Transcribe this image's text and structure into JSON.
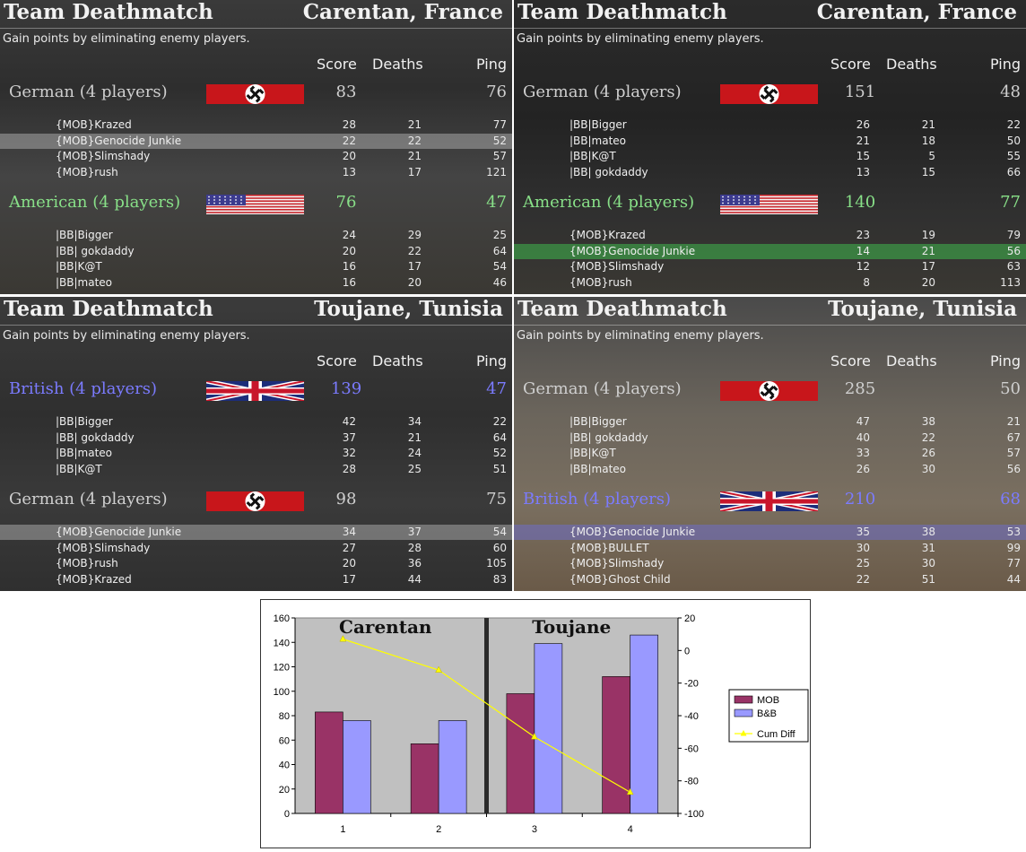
{
  "panels": [
    {
      "mode": "Team Deathmatch",
      "map": "Carentan, France",
      "subtitle": "Gain points by eliminating enemy players.",
      "columns": {
        "score": "Score",
        "deaths": "Deaths",
        "ping": "Ping"
      },
      "teams": [
        {
          "name": "German (4 players)",
          "flag": "german-flag",
          "score": "83",
          "ping": "76",
          "players": [
            {
              "name": "{MOB}Krazed",
              "score": "28",
              "deaths": "21",
              "ping": "77",
              "highlight": ""
            },
            {
              "name": "{MOB}Genocide Junkie",
              "score": "22",
              "deaths": "22",
              "ping": "52",
              "highlight": "gray"
            },
            {
              "name": "{MOB}Slimshady",
              "score": "20",
              "deaths": "21",
              "ping": "57",
              "highlight": ""
            },
            {
              "name": "{MOB}rush",
              "score": "13",
              "deaths": "17",
              "ping": "121",
              "highlight": ""
            }
          ]
        },
        {
          "name": "American (4 players)",
          "flag": "american-flag",
          "score": "76",
          "ping": "47",
          "players": [
            {
              "name": "|BB|Bigger",
              "score": "24",
              "deaths": "29",
              "ping": "25",
              "highlight": ""
            },
            {
              "name": "|BB| gokdaddy",
              "score": "20",
              "deaths": "22",
              "ping": "64",
              "highlight": ""
            },
            {
              "name": "|BB|K@T",
              "score": "16",
              "deaths": "17",
              "ping": "54",
              "highlight": ""
            },
            {
              "name": "|BB|mateo",
              "score": "16",
              "deaths": "20",
              "ping": "46",
              "highlight": ""
            }
          ]
        }
      ]
    },
    {
      "mode": "Team Deathmatch",
      "map": "Carentan, France",
      "subtitle": "Gain points by eliminating enemy players.",
      "columns": {
        "score": "Score",
        "deaths": "Deaths",
        "ping": "Ping"
      },
      "teams": [
        {
          "name": "German (4 players)",
          "flag": "german-flag",
          "score": "151",
          "ping": "48",
          "players": [
            {
              "name": "|BB|Bigger",
              "score": "26",
              "deaths": "21",
              "ping": "22",
              "highlight": ""
            },
            {
              "name": "|BB|mateo",
              "score": "21",
              "deaths": "18",
              "ping": "50",
              "highlight": ""
            },
            {
              "name": "|BB|K@T",
              "score": "15",
              "deaths": "5",
              "ping": "55",
              "highlight": ""
            },
            {
              "name": "|BB| gokdaddy",
              "score": "13",
              "deaths": "15",
              "ping": "66",
              "highlight": ""
            }
          ]
        },
        {
          "name": "American (4 players)",
          "flag": "american-flag",
          "score": "140",
          "ping": "77",
          "players": [
            {
              "name": "{MOB}Krazed",
              "score": "23",
              "deaths": "19",
              "ping": "79",
              "highlight": ""
            },
            {
              "name": "{MOB}Genocide Junkie",
              "score": "14",
              "deaths": "21",
              "ping": "56",
              "highlight": "green"
            },
            {
              "name": "{MOB}Slimshady",
              "score": "12",
              "deaths": "17",
              "ping": "63",
              "highlight": ""
            },
            {
              "name": "{MOB}rush",
              "score": "8",
              "deaths": "20",
              "ping": "113",
              "highlight": ""
            }
          ]
        }
      ]
    },
    {
      "mode": "Team Deathmatch",
      "map": "Toujane, Tunisia",
      "subtitle": "Gain points by eliminating enemy players.",
      "columns": {
        "score": "Score",
        "deaths": "Deaths",
        "ping": "Ping"
      },
      "teams": [
        {
          "name": "British (4 players)",
          "flag": "british-flag",
          "score": "139",
          "ping": "47",
          "players": [
            {
              "name": "|BB|Bigger",
              "score": "42",
              "deaths": "34",
              "ping": "22",
              "highlight": ""
            },
            {
              "name": "|BB| gokdaddy",
              "score": "37",
              "deaths": "21",
              "ping": "64",
              "highlight": ""
            },
            {
              "name": "|BB|mateo",
              "score": "32",
              "deaths": "24",
              "ping": "52",
              "highlight": ""
            },
            {
              "name": "|BB|K@T",
              "score": "28",
              "deaths": "25",
              "ping": "51",
              "highlight": ""
            }
          ]
        },
        {
          "name": "German (4 players)",
          "flag": "german-flag",
          "score": "98",
          "ping": "75",
          "players": [
            {
              "name": "{MOB}Genocide Junkie",
              "score": "34",
              "deaths": "37",
              "ping": "54",
              "highlight": "gray"
            },
            {
              "name": "{MOB}Slimshady",
              "score": "27",
              "deaths": "28",
              "ping": "60",
              "highlight": ""
            },
            {
              "name": "{MOB}rush",
              "score": "20",
              "deaths": "36",
              "ping": "105",
              "highlight": ""
            },
            {
              "name": "{MOB}Krazed",
              "score": "17",
              "deaths": "44",
              "ping": "83",
              "highlight": ""
            }
          ]
        }
      ]
    },
    {
      "mode": "Team Deathmatch",
      "map": "Toujane, Tunisia",
      "subtitle": "Gain points by eliminating enemy players.",
      "columns": {
        "score": "Score",
        "deaths": "Deaths",
        "ping": "Ping"
      },
      "teams": [
        {
          "name": "German (4 players)",
          "flag": "german-flag",
          "score": "285",
          "ping": "50",
          "players": [
            {
              "name": "|BB|Bigger",
              "score": "47",
              "deaths": "38",
              "ping": "21",
              "highlight": ""
            },
            {
              "name": "|BB| gokdaddy",
              "score": "40",
              "deaths": "22",
              "ping": "67",
              "highlight": ""
            },
            {
              "name": "|BB|K@T",
              "score": "33",
              "deaths": "26",
              "ping": "57",
              "highlight": ""
            },
            {
              "name": "|BB|mateo",
              "score": "26",
              "deaths": "30",
              "ping": "56",
              "highlight": ""
            }
          ]
        },
        {
          "name": "British (4 players)",
          "flag": "british-flag",
          "score": "210",
          "ping": "68",
          "players": [
            {
              "name": "{MOB}Genocide Junkie",
              "score": "35",
              "deaths": "38",
              "ping": "53",
              "highlight": "blue"
            },
            {
              "name": "{MOB}BULLET",
              "score": "30",
              "deaths": "31",
              "ping": "99",
              "highlight": ""
            },
            {
              "name": "{MOB}Slimshady",
              "score": "25",
              "deaths": "30",
              "ping": "77",
              "highlight": ""
            },
            {
              "name": "{MOB}Ghost Child",
              "score": "22",
              "deaths": "51",
              "ping": "44",
              "highlight": ""
            }
          ]
        }
      ]
    }
  ],
  "chart_data": {
    "type": "bar",
    "categories": [
      "1",
      "2",
      "3",
      "4"
    ],
    "series": [
      {
        "name": "MOB",
        "values": [
          83,
          57,
          98,
          112
        ],
        "color": "#993366"
      },
      {
        "name": "B&B",
        "values": [
          76,
          76,
          139,
          146
        ],
        "color": "#9999ff"
      }
    ],
    "line_series": {
      "name": "Cum Diff",
      "values": [
        7,
        -12,
        -53,
        -87
      ],
      "color": "#ffff00",
      "axis": "right"
    },
    "annotations": [
      "Carentan",
      "Toujane"
    ],
    "ylim": [
      0,
      160
    ],
    "yticks": [
      "0",
      "20",
      "40",
      "60",
      "80",
      "100",
      "120",
      "140",
      "160"
    ],
    "y2lim": [
      -100,
      20
    ],
    "y2ticks": [
      "-100",
      "-80",
      "-60",
      "-40",
      "-20",
      "0",
      "20"
    ],
    "plot_background": "#c0c0c0",
    "legend_position": "right"
  }
}
